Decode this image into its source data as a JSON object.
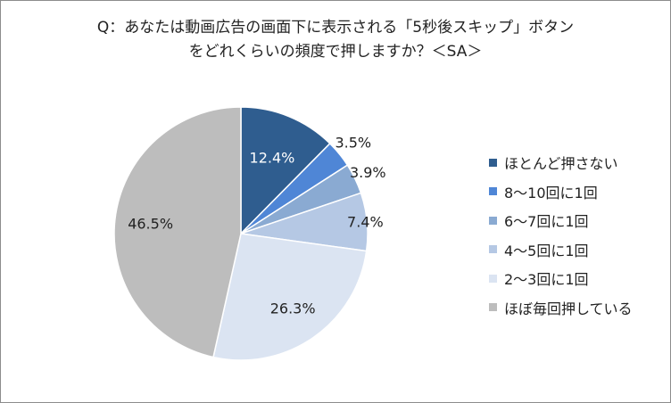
{
  "title_lines": [
    "Q：あなたは動画広告の画面下に表示される「5秒後スキップ」ボタン",
    "をどれくらいの頻度で押しますか？＜SA＞"
  ],
  "chart_data": {
    "type": "pie",
    "start_angle_deg": 0,
    "direction": "clockwise",
    "legend_position": "right",
    "slices": [
      {
        "label": "ほとんど押さない",
        "value": 12.4,
        "display": "12.4%",
        "color": "#2f5d8f",
        "label_color": "#ffffff"
      },
      {
        "label": "8～10回に1回",
        "value": 3.5,
        "display": "3.5%",
        "color": "#4f86d6",
        "label_color": "#222222"
      },
      {
        "label": "6～7回に1回",
        "value": 3.9,
        "display": "3.9%",
        "color": "#8aaad2",
        "label_color": "#222222"
      },
      {
        "label": "4～5回に1回",
        "value": 7.4,
        "display": "7.4%",
        "color": "#b5c8e4",
        "label_color": "#222222"
      },
      {
        "label": "2～3回に1回",
        "value": 26.3,
        "display": "26.3%",
        "color": "#dbe4f2",
        "label_color": "#222222"
      },
      {
        "label": "ほぼ毎回押している",
        "value": 46.5,
        "display": "46.5%",
        "color": "#bdbdbd",
        "label_color": "#222222"
      }
    ]
  }
}
